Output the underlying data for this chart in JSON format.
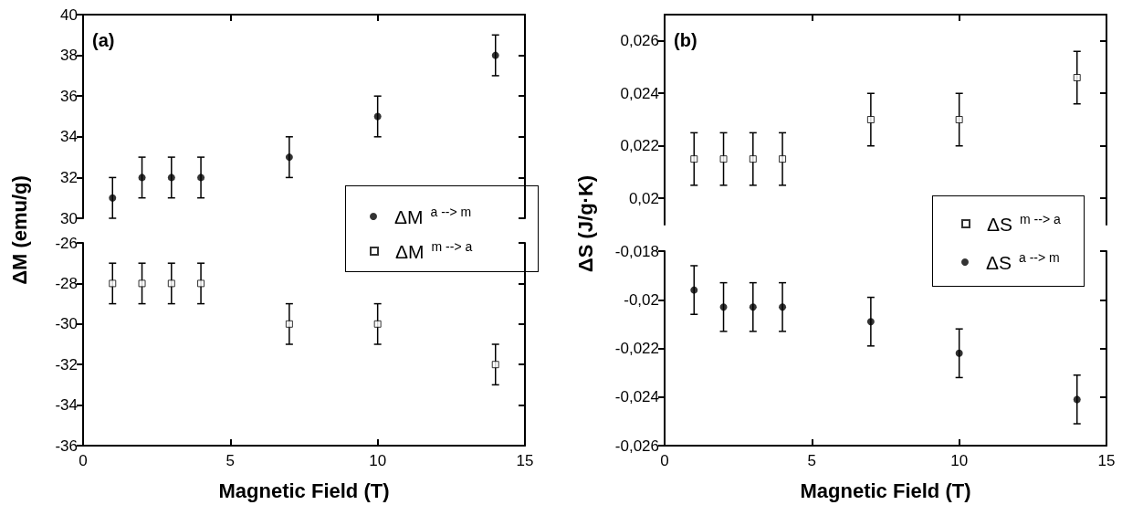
{
  "chart_data": [
    {
      "type": "scatter",
      "annotations": [
        "(a)"
      ],
      "ylabel": "ΔM (emu/g)",
      "xlim": [
        0,
        15
      ],
      "xticks": [
        0,
        5,
        10,
        15
      ],
      "ylim": [
        30,
        40
      ],
      "yticks": [
        30,
        32,
        34,
        36,
        38,
        40
      ],
      "tick_labels": "y",
      "legend": "right",
      "marker": "circle",
      "x": [
        1,
        2,
        3,
        4,
        7,
        10,
        14
      ],
      "series": [
        {
          "name": "ΔM$^{a --> m}$",
          "color": "#000000",
          "values": [
            31,
            32,
            32,
            32,
            33,
            35,
            38
          ],
          "errors": [
            1,
            1,
            1,
            1,
            1,
            1,
            1
          ]
        }
      ]
    },
    {
      "type": "scatter",
      "xlabel": "Magnetic Field (T)",
      "xlim": [
        0,
        15
      ],
      "xticks": [
        0,
        5,
        10,
        15
      ],
      "ylim": [
        -36,
        -26
      ],
      "yticks": [
        -36,
        -34,
        -32,
        -30,
        -28,
        -26
      ],
      "legend": "right",
      "marker": "square",
      "x": [
        1,
        2,
        3,
        4,
        7,
        10,
        14
      ],
      "series": [
        {
          "name": "ΔM$^{m --> a}$",
          "color": "#000000",
          "values": [
            -28,
            -28,
            -28,
            -28,
            -30,
            -30,
            -32
          ],
          "errors": [
            1,
            1,
            1,
            1,
            1,
            1,
            1
          ]
        }
      ]
    },
    {
      "type": "scatter",
      "annotations": [
        "(b)"
      ],
      "ylabel": "ΔS (J/g·K)",
      "xlim": [
        0,
        15
      ],
      "xticks": [
        0,
        5,
        10,
        15
      ],
      "ylim": [
        0.019,
        0.027
      ],
      "yticks": [
        {
          "value": 0.02,
          "label": "0,02"
        },
        {
          "value": 0.022,
          "label": "0,022"
        },
        {
          "value": 0.024,
          "label": "0,024"
        },
        {
          "value": 0.026,
          "label": "0,026"
        }
      ],
      "tick_labels": "y",
      "legend": "right",
      "marker": "square",
      "x": [
        1,
        2,
        3,
        4,
        7,
        10,
        14
      ],
      "series": [
        {
          "name": "ΔS$^{m --> a}$",
          "color": "#000000",
          "values": [
            0.0215,
            0.0215,
            0.0215,
            0.0215,
            0.023,
            0.023,
            0.0246
          ],
          "errors": [
            0.001,
            0.001,
            0.001,
            0.001,
            0.001,
            0.001,
            0.001
          ]
        }
      ]
    },
    {
      "type": "scatter",
      "xlabel": "Magnetic Field (T)",
      "xlim": [
        0,
        15
      ],
      "xticks": [
        0,
        5,
        10,
        15
      ],
      "ylim": [
        -0.026,
        -0.018
      ],
      "yticks": [
        {
          "value": -0.026,
          "label": "-0,026"
        },
        {
          "value": -0.024,
          "label": "-0,024"
        },
        {
          "value": -0.022,
          "label": "-0,022"
        },
        {
          "value": -0.02,
          "label": "-0,02"
        },
        {
          "value": -0.018,
          "label": "-0,018"
        }
      ],
      "legend": "right",
      "marker": "circle",
      "x": [
        1,
        2,
        3,
        4,
        7,
        10,
        14
      ],
      "series": [
        {
          "name": "ΔS$^{a --> m}$",
          "color": "#000000",
          "values": [
            -0.0196,
            -0.0203,
            -0.0203,
            -0.0203,
            -0.0209,
            -0.0222,
            -0.0241
          ],
          "errors": [
            0.001,
            0.001,
            0.001,
            0.001,
            0.001,
            0.001,
            0.001
          ]
        }
      ]
    }
  ]
}
